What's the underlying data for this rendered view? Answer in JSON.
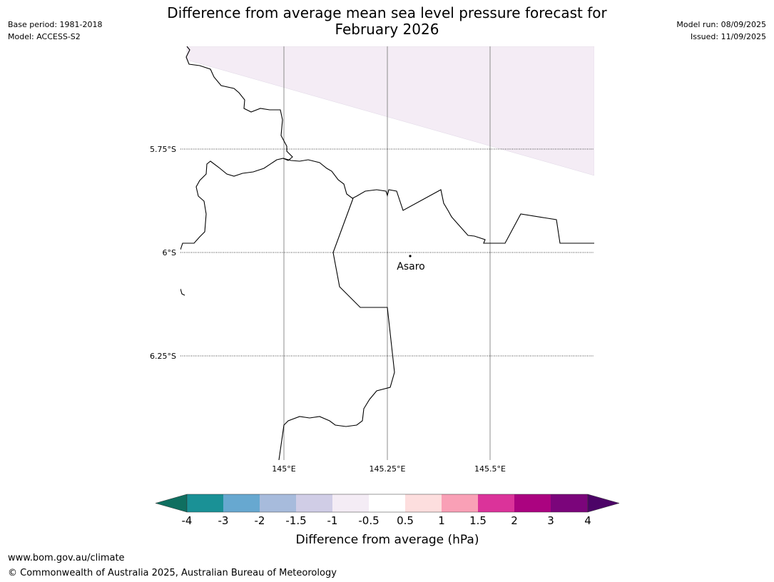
{
  "header": {
    "title_line1": "Difference from average mean sea level pressure forecast for",
    "title_line2": "February 2026",
    "base_period": "Base period: 1981-2018",
    "model": "Model: ACCESS-S2",
    "model_run": "Model run: 08/09/2025",
    "issued": "Issued: 11/09/2025"
  },
  "map": {
    "lat_labels": [
      "5.75°S",
      "6°S",
      "6.25°S"
    ],
    "lon_labels": [
      "145°E",
      "145.25°E",
      "145.5°E"
    ],
    "place": {
      "name": "Asaro",
      "lon": 145.3,
      "lat": -6.01
    },
    "shaded_category": "-1 to -0.5",
    "shaded_color": "#f4ecf5"
  },
  "colorbar": {
    "title": "Difference from average (hPa)",
    "labels": [
      "-4",
      "-3",
      "-2",
      "-1.5",
      "-1",
      "-0.5",
      "0.5",
      "1",
      "1.5",
      "2",
      "3",
      "4"
    ],
    "colors": [
      "#1a9196",
      "#67a8d0",
      "#a7bbdc",
      "#d0cde6",
      "#f4ecf5",
      "#ffffff",
      "#fddede",
      "#f9a0b6",
      "#db339a",
      "#ab0380",
      "#7b057b"
    ],
    "under_color": "#0f6f60",
    "over_color": "#4c0467"
  },
  "footer": {
    "url": "www.bom.gov.au/climate",
    "copyright": "© Commonwealth of Australia 2025, Australian Bureau of Meteorology"
  }
}
